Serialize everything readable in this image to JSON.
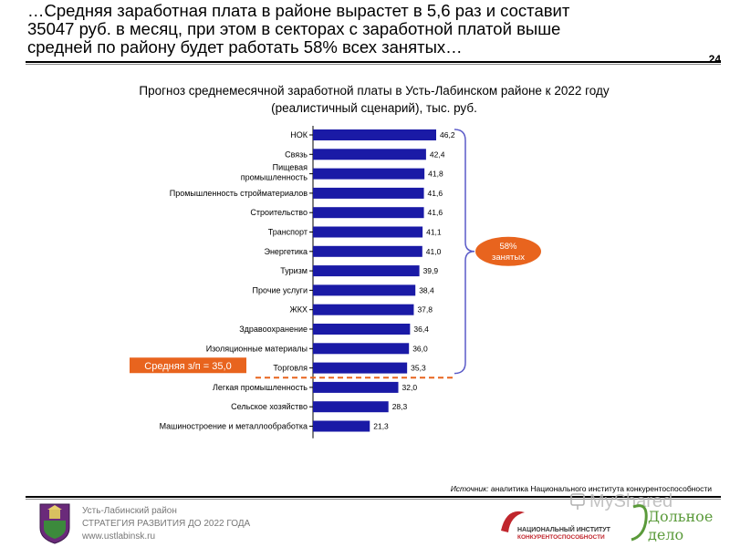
{
  "header": {
    "headline_lines": [
      "…Средняя заработная плата в районе вырастет в 5,6 раз и составит",
      "35047 руб. в месяц, при этом в секторах с заработной платой выше",
      "средней по району будет работать 58% всех занятых…"
    ],
    "page_number": "24"
  },
  "chart_data": {
    "type": "bar",
    "orientation": "horizontal",
    "title_lines": [
      "Прогноз среднемесячной заработной платы в Усть-Лабинском районе к 2022 году",
      "(реалистичный сценарий), тыс. руб."
    ],
    "categories": [
      [
        "НОК"
      ],
      [
        "Связь"
      ],
      [
        "Пищевая",
        "промышленность"
      ],
      [
        "Промышленность стройматериалов"
      ],
      [
        "Строительство"
      ],
      [
        "Транспорт"
      ],
      [
        "Энергетика"
      ],
      [
        "Туризм"
      ],
      [
        "Прочие услуги"
      ],
      [
        "ЖКХ"
      ],
      [
        "Здравоохранение"
      ],
      [
        "Изоляционные материалы"
      ],
      [
        "Торговля"
      ],
      [
        "Легкая промышленность"
      ],
      [
        "Сельское хозяйство"
      ],
      [
        "Машиностроение и металлообработка"
      ]
    ],
    "values": [
      46.2,
      42.4,
      41.8,
      41.6,
      41.6,
      41.1,
      41.0,
      39.9,
      38.4,
      37.8,
      36.4,
      36.0,
      35.3,
      32.0,
      28.3,
      21.3
    ],
    "value_labels": [
      "46,2",
      "42,4",
      "41,8",
      "41,6",
      "41,6",
      "41,1",
      "41,0",
      "39,9",
      "38,4",
      "37,8",
      "36,4",
      "36,0",
      "35,3",
      "32,0",
      "28,3",
      "21,3"
    ],
    "xlim": [
      0,
      46.2
    ],
    "bar_color": "#1a1aa6",
    "average_line": {
      "value": 35.0,
      "label": "Средняя з/п = 35,0",
      "color": "#e8641e"
    },
    "bracket": {
      "from_category_index": 0,
      "to_category_index": 12,
      "label_lines": [
        "58%",
        "занятых"
      ],
      "color": "#e8641e",
      "stroke_color": "#5a5ac8"
    }
  },
  "source": {
    "prefix": "Источник:",
    "text": " аналитика Национального института конкурентоспособности"
  },
  "footer": {
    "lines": [
      "Усть-Лабинский район",
      "СТРАТЕГИЯ РАЗВИТИЯ ДО 2022 ГОДА",
      "www.ustlabinsk.ru"
    ],
    "logo_text": [
      "НАЦИОНАЛЬНЫЙ ИНСТИТУТ",
      "КОНКУРЕНТОСПОСОБНОСТИ"
    ],
    "watermark": "MyShared",
    "dp_logo": [
      "Дольное",
      "дело"
    ],
    "logo_color": "#c0262d"
  }
}
